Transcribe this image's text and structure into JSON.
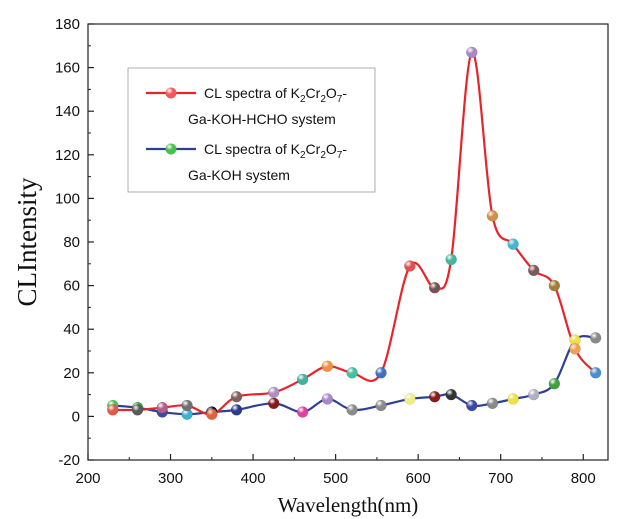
{
  "chart_data": {
    "type": "line",
    "title": "",
    "xlabel": "Wavelength(nm)",
    "ylabel": "CLIntensity",
    "xlim": [
      200,
      830
    ],
    "ylim": [
      -20,
      180
    ],
    "xticks": [
      200,
      300,
      400,
      500,
      600,
      700,
      800
    ],
    "yticks": [
      -20,
      0,
      20,
      40,
      60,
      80,
      100,
      120,
      140,
      160,
      180
    ],
    "grid": false,
    "legend_position": "upper-left",
    "series": [
      {
        "name_parts": [
          {
            "text": "CL spectra of K"
          },
          {
            "text": "2",
            "sub": true
          },
          {
            "text": "Cr"
          },
          {
            "text": "2",
            "sub": true
          },
          {
            "text": "O"
          },
          {
            "text": "7",
            "sub": true
          },
          {
            "text": "-"
          }
        ],
        "name_line2": "Ga-KOH-HCHO system",
        "line_color": "#e8242a",
        "legend_marker_color": "#f05a5a",
        "x": [
          230,
          260,
          290,
          320,
          350,
          380,
          425,
          460,
          490,
          520,
          555,
          590,
          620,
          640,
          665,
          690,
          715,
          740,
          765,
          790,
          815
        ],
        "y": [
          3,
          3,
          4,
          5,
          1,
          9,
          11,
          17,
          23,
          20,
          20,
          69,
          59,
          72,
          167,
          92,
          79,
          67,
          60,
          31,
          20
        ],
        "marker_colors": [
          "#e05a4a",
          "#5a5a5a",
          "#b85a8c",
          "#707070",
          "#e06040",
          "#806060",
          "#b090c0",
          "#40b0a0",
          "#f09040",
          "#40c0a0",
          "#4070c0",
          "#e05050",
          "#7a5050",
          "#40b8a0",
          "#a888c8",
          "#d09048",
          "#40b8d0",
          "#7a5a5a",
          "#a08038",
          "#f0a050",
          "#4a90d0"
        ]
      },
      {
        "name_parts": [
          {
            "text": "CL spectra of K"
          },
          {
            "text": "2",
            "sub": true
          },
          {
            "text": "Cr"
          },
          {
            "text": "2",
            "sub": true
          },
          {
            "text": "O"
          },
          {
            "text": "7",
            "sub": true
          },
          {
            "text": "-"
          }
        ],
        "name_line2": "Ga-KOH system",
        "line_color": "#2e3f96",
        "legend_marker_color": "#4cc04c",
        "x": [
          230,
          260,
          290,
          320,
          350,
          380,
          425,
          460,
          490,
          520,
          555,
          590,
          620,
          640,
          665,
          690,
          715,
          740,
          765,
          790,
          815
        ],
        "y": [
          5,
          4,
          2,
          1,
          2,
          3,
          6,
          2,
          8,
          3,
          5,
          8,
          9,
          10,
          5,
          6,
          8,
          10,
          15,
          35,
          36
        ],
        "marker_colors": [
          "#4cc04c",
          "#40a040",
          "#3a4aa0",
          "#40b0d0",
          "#111111",
          "#2a3a90",
          "#8a1a1a",
          "#e040a0",
          "#a888c8",
          "#8a8a8a",
          "#8a8a8a",
          "#f0f080",
          "#8a1a1a",
          "#333333",
          "#3a4aa0",
          "#8a8a8a",
          "#f0e040",
          "#b0b0c0",
          "#40a040",
          "#f0e040",
          "#8a8a8a"
        ]
      }
    ]
  }
}
